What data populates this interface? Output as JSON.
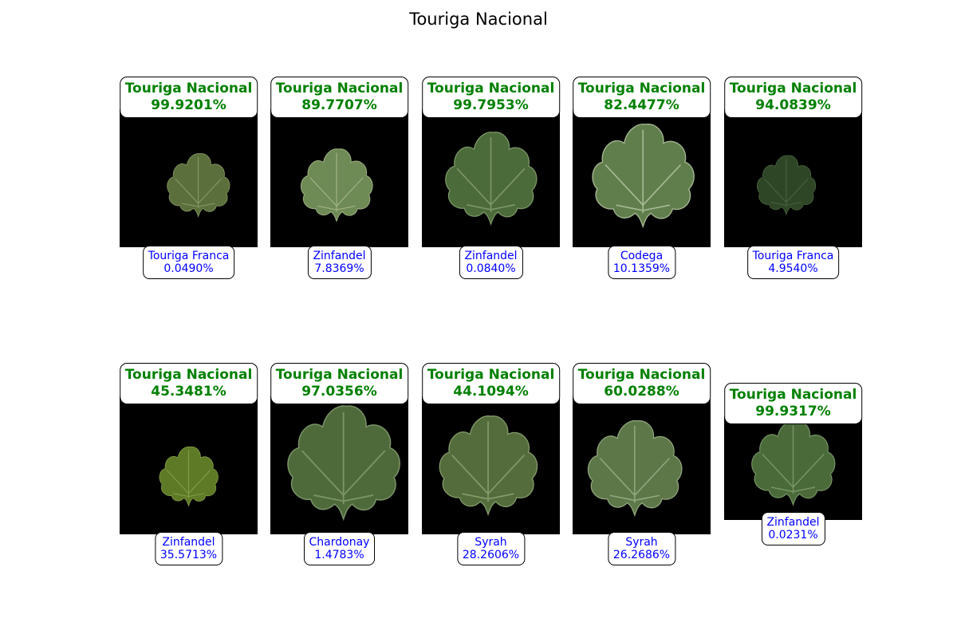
{
  "title": "Touriga Nacional",
  "colors": {
    "primary_text": "#008000",
    "secondary_text": "#0000ff",
    "image_background": "#000000"
  },
  "panels": [
    {
      "top_label": "Touriga Nacional",
      "top_score": "99.9201%",
      "second_label": "Touriga Franca",
      "second_score": "0.0490%"
    },
    {
      "top_label": "Touriga Nacional",
      "top_score": "89.7707%",
      "second_label": "Zinfandel",
      "second_score": "7.8369%"
    },
    {
      "top_label": "Touriga Nacional",
      "top_score": "99.7953%",
      "second_label": "Zinfandel",
      "second_score": "0.0840%"
    },
    {
      "top_label": "Touriga Nacional",
      "top_score": "82.4477%",
      "second_label": "Codega",
      "second_score": "10.1359%"
    },
    {
      "top_label": "Touriga Nacional",
      "top_score": "94.0839%",
      "second_label": "Touriga Franca",
      "second_score": "4.9540%"
    },
    {
      "top_label": "Touriga Nacional",
      "top_score": "45.3481%",
      "second_label": "Zinfandel",
      "second_score": "35.5713%"
    },
    {
      "top_label": "Touriga Nacional",
      "top_score": "97.0356%",
      "second_label": "Chardonay",
      "second_score": "1.4783%"
    },
    {
      "top_label": "Touriga Nacional",
      "top_score": "44.1094%",
      "second_label": "Syrah",
      "second_score": "28.2606%"
    },
    {
      "top_label": "Touriga Nacional",
      "top_score": "60.0288%",
      "second_label": "Syrah",
      "second_score": "26.2686%"
    },
    {
      "top_label": "Touriga Nacional",
      "top_score": "99.9317%",
      "second_label": "Zinfandel",
      "second_score": "0.0231%"
    }
  ]
}
